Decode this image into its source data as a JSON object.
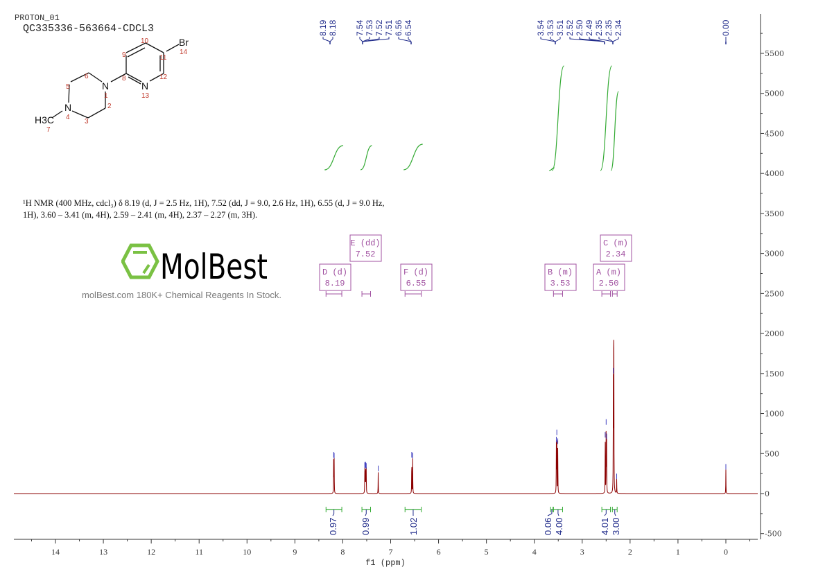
{
  "header": {
    "experiment": "PROTON_01",
    "sample": "QC335336-563664-CDCL3"
  },
  "structure": {
    "atoms": {
      "N1": "N",
      "N4": "N",
      "N13": "N",
      "Br": "Br",
      "CH3": "H3C"
    },
    "numbers": [
      "1",
      "2",
      "3",
      "4",
      "5",
      "6",
      "7",
      "8",
      "9",
      "10",
      "11",
      "12",
      "13",
      "14"
    ]
  },
  "description": {
    "line1": "¹H NMR (400 MHz, cdcl₃) δ 8.19 (d, J = 2.5 Hz, 1H), 7.52 (dd, J = 9.0, 2.6 Hz, 1H), 6.55 (d, J = 9.0 Hz,",
    "line2": "1H), 3.60 – 3.41 (m, 4H), 2.59 – 2.41 (m, 4H), 2.37 – 2.27 (m, 3H)."
  },
  "watermark": {
    "logo": "MolBest",
    "tagline": "molBest.com 180K+ Chemical Reagents In Stock."
  },
  "colors": {
    "spectrum": "#8b0000",
    "peak_labels": "#1f2a8a",
    "integrals": "#33aa33",
    "multiplets": "#a050a0",
    "axis": "#333333",
    "logo_green": "#7ac143"
  },
  "chart_data": {
    "type": "line",
    "xlabel": "f1 (ppm)",
    "ylabel": "",
    "xlim": [
      14.87,
      -0.67
    ],
    "ylim": [
      -600,
      6000
    ],
    "x_reversed": true,
    "grid": false,
    "x_ticks": [
      14,
      13,
      12,
      11,
      10,
      9,
      8,
      7,
      6,
      5,
      4,
      3,
      2,
      1,
      0
    ],
    "y_ticks": [
      -500,
      0,
      500,
      1000,
      1500,
      2000,
      2500,
      3000,
      3500,
      4000,
      4500,
      5000,
      5500
    ],
    "peaks": [
      {
        "ppm": 8.19,
        "intensity": 450
      },
      {
        "ppm": 8.18,
        "intensity": 440
      },
      {
        "ppm": 7.54,
        "intensity": 320
      },
      {
        "ppm": 7.53,
        "intensity": 330
      },
      {
        "ppm": 7.52,
        "intensity": 320
      },
      {
        "ppm": 7.51,
        "intensity": 310
      },
      {
        "ppm": 7.26,
        "intensity": 280
      },
      {
        "ppm": 6.56,
        "intensity": 450
      },
      {
        "ppm": 6.54,
        "intensity": 440
      },
      {
        "ppm": 3.54,
        "intensity": 640
      },
      {
        "ppm": 3.53,
        "intensity": 730
      },
      {
        "ppm": 3.51,
        "intensity": 620
      },
      {
        "ppm": 2.52,
        "intensity": 700
      },
      {
        "ppm": 2.5,
        "intensity": 860
      },
      {
        "ppm": 2.49,
        "intensity": 680
      },
      {
        "ppm": 2.35,
        "intensity": 1500
      },
      {
        "ppm": 2.34,
        "intensity": 2700
      },
      {
        "ppm": 2.28,
        "intensity": 180
      },
      {
        "ppm": 0.0,
        "intensity": 300
      }
    ],
    "peak_labels": [
      "8.19",
      "8.18",
      "7.54",
      "7.53",
      "7.52",
      "7.51",
      "6.56",
      "6.54",
      "3.54",
      "3.53",
      "3.51",
      "2.52",
      "2.50",
      "2.49",
      "2.35",
      "2.35",
      "2.34",
      "0.00"
    ],
    "multiplets": [
      {
        "id": "D",
        "type": "d",
        "shift": "8.19",
        "range": [
          8.35,
          8.02
        ]
      },
      {
        "id": "E",
        "type": "dd",
        "shift": "7.52",
        "range": [
          7.6,
          7.42
        ]
      },
      {
        "id": "F",
        "type": "d",
        "shift": "6.55",
        "range": [
          6.7,
          6.36
        ]
      },
      {
        "id": "B",
        "type": "m",
        "shift": "3.53",
        "range": [
          3.6,
          3.41
        ]
      },
      {
        "id": "A",
        "type": "m",
        "shift": "2.50",
        "range": [
          2.59,
          2.41
        ]
      },
      {
        "id": "C",
        "type": "m",
        "shift": "2.34",
        "range": [
          2.37,
          2.27
        ]
      }
    ],
    "integrals": [
      {
        "value": "0.97",
        "range": [
          8.35,
          8.02
        ]
      },
      {
        "value": "0.99",
        "range": [
          7.6,
          7.42
        ]
      },
      {
        "value": "1.02",
        "range": [
          6.7,
          6.36
        ]
      },
      {
        "value": "0.06",
        "range": [
          3.66,
          3.61
        ]
      },
      {
        "value": "4.00",
        "range": [
          3.6,
          3.41
        ]
      },
      {
        "value": "4.01",
        "range": [
          2.59,
          2.41
        ]
      },
      {
        "value": "3.00",
        "range": [
          2.37,
          2.27
        ]
      }
    ]
  }
}
